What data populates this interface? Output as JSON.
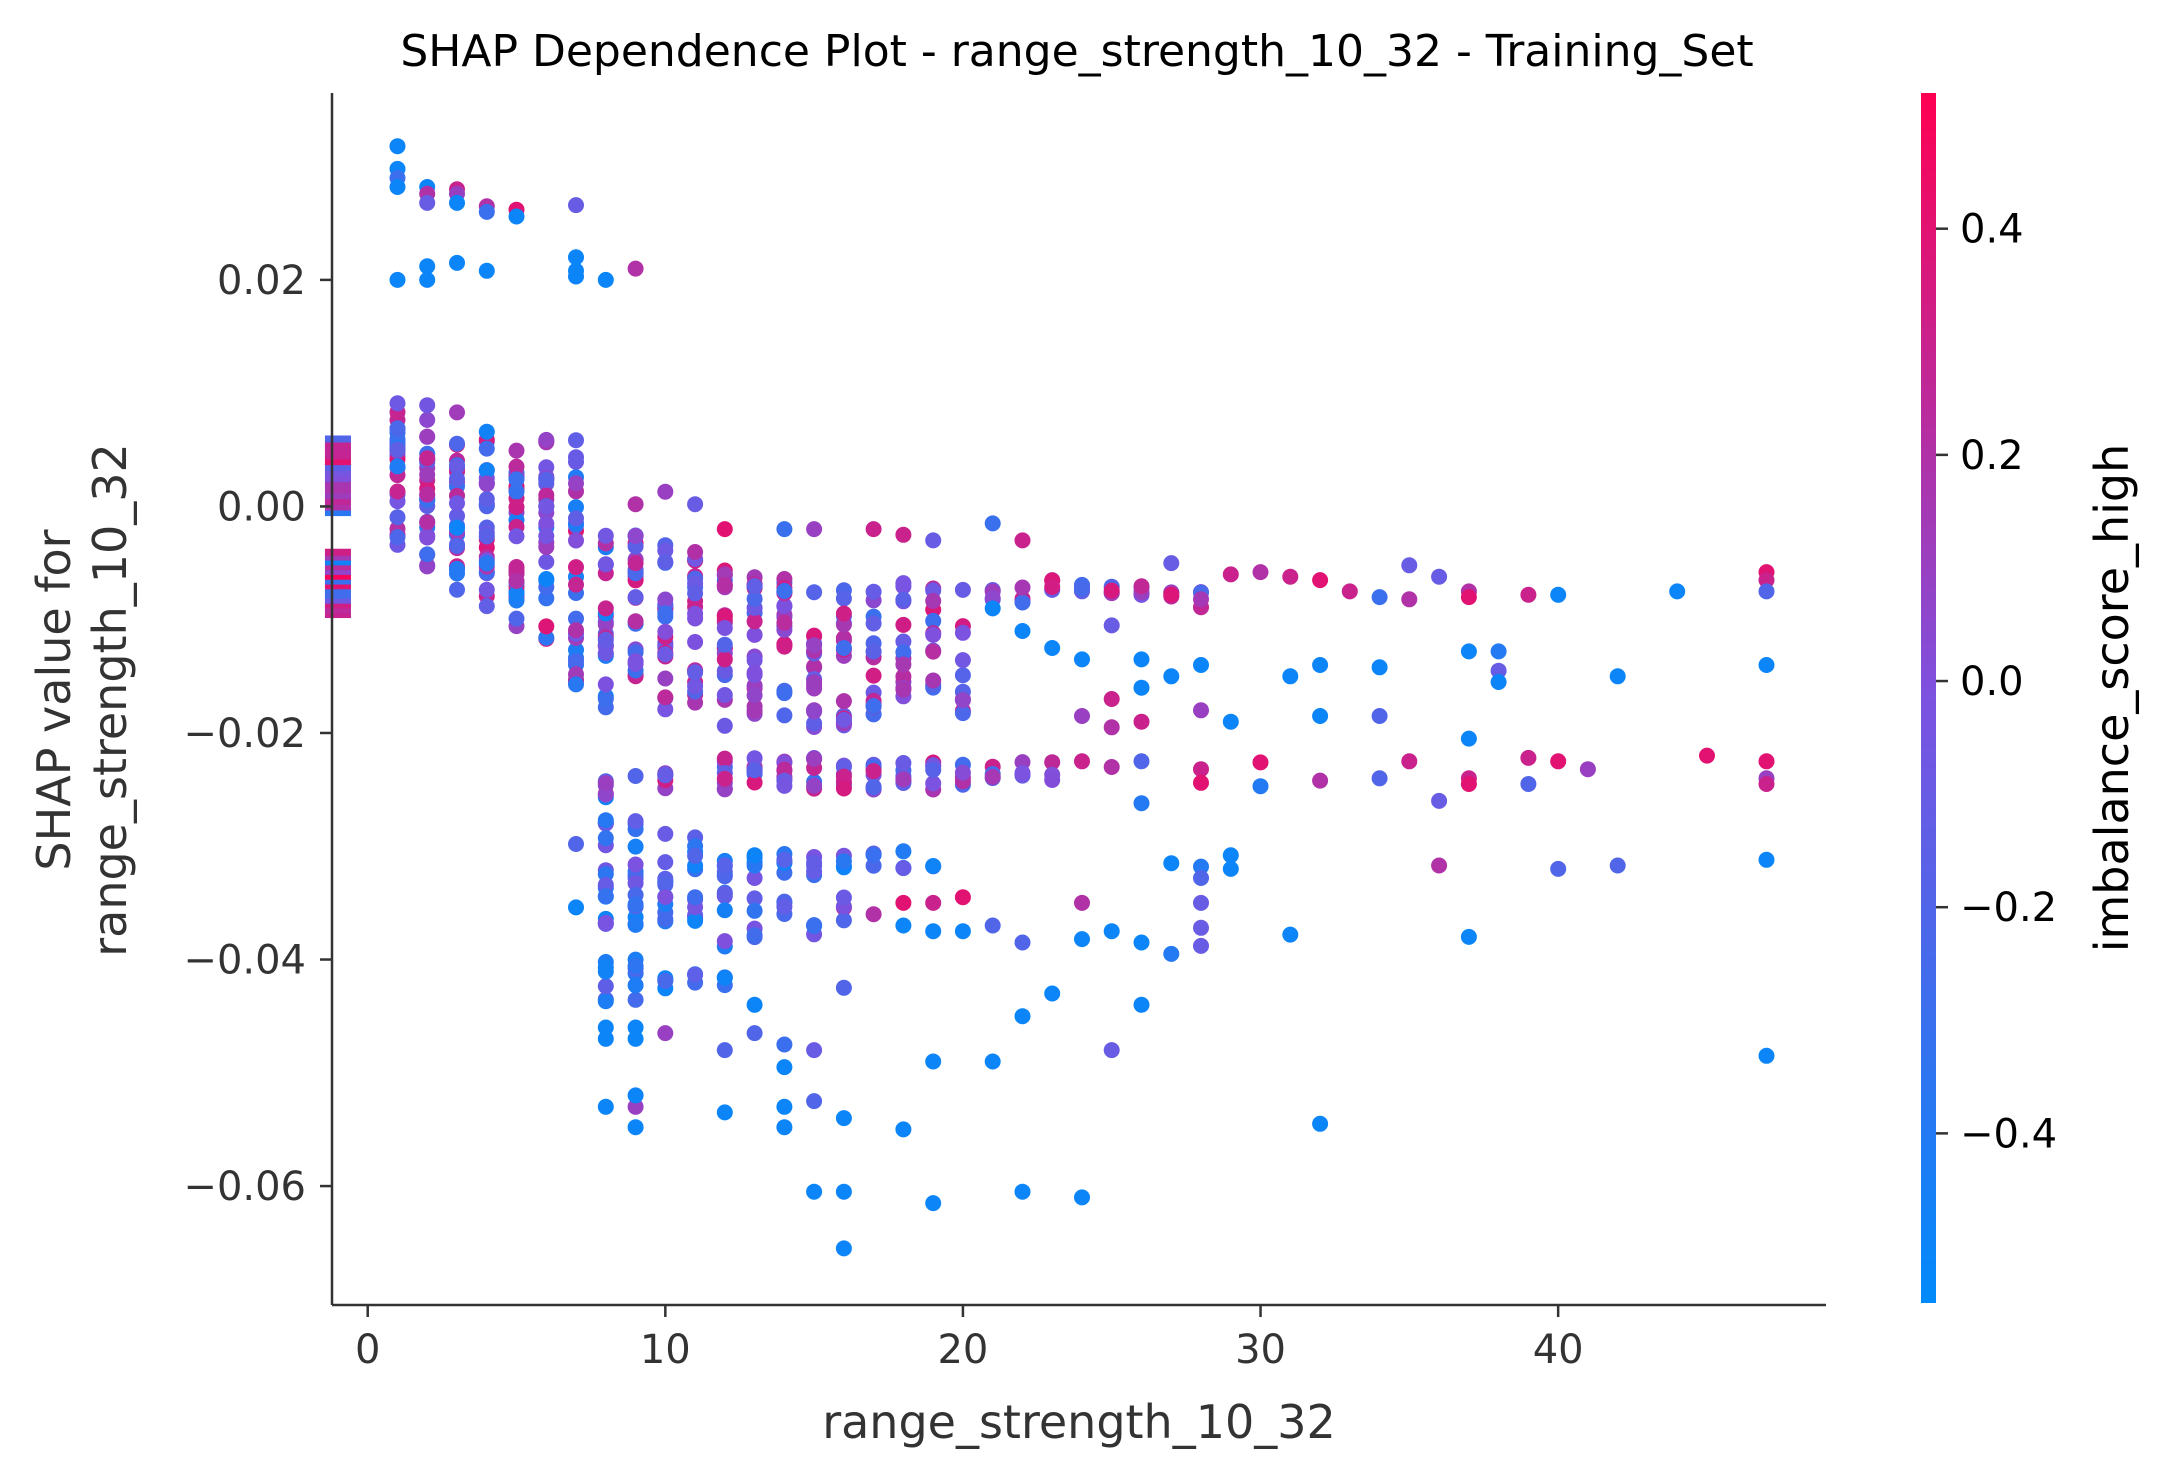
{
  "chart_data": {
    "type": "scatter",
    "title": "SHAP Dependence Plot - range_strength_10_32 - Training_Set",
    "xlabel": "range_strength_10_32",
    "ylabel_lines": [
      "SHAP value for",
      "range_strength_10_32"
    ],
    "xlim": [
      -1.2,
      49
    ],
    "ylim": [
      -0.0705,
      0.0365
    ],
    "xticks": [
      0,
      10,
      20,
      30,
      40
    ],
    "xtick_labels": [
      "0",
      "10",
      "20",
      "30",
      "40"
    ],
    "yticks": [
      0.02,
      0.0,
      -0.02,
      -0.04,
      -0.06
    ],
    "ytick_labels": [
      "0.02",
      "0.00",
      "−0.02",
      "−0.04",
      "−0.06"
    ],
    "grid": false,
    "colorbar": {
      "label": "imbalance_score_high",
      "range": [
        -0.55,
        0.52
      ],
      "ticks": [
        0.4,
        0.2,
        0.0,
        -0.2,
        -0.4
      ],
      "tick_labels": [
        "0.4",
        "0.2",
        "0.0",
        "−0.2",
        "−0.4"
      ],
      "color_low": "#008afb",
      "color_mid": "#7c52e0",
      "color_high": "#ff0052"
    },
    "missing_band": [
      {
        "x": -1,
        "y_from": -0.0005,
        "y_to": 0.006
      },
      {
        "x": -1,
        "y_from": -0.0095,
        "y_to": -0.004
      }
    ],
    "points": [
      [
        1,
        0.0318,
        -0.5
      ],
      [
        1,
        0.0298,
        -0.5
      ],
      [
        1,
        0.029,
        -0.3
      ],
      [
        1,
        0.0282,
        -0.5
      ],
      [
        1,
        0.02,
        -0.5
      ],
      [
        2,
        0.0282,
        -0.5
      ],
      [
        2,
        0.0276,
        0.2
      ],
      [
        2,
        0.0268,
        -0.1
      ],
      [
        2,
        0.0212,
        -0.5
      ],
      [
        2,
        0.02,
        -0.5
      ],
      [
        3,
        0.028,
        0.3
      ],
      [
        3,
        0.0276,
        0.1
      ],
      [
        3,
        0.0268,
        -0.5
      ],
      [
        3,
        0.0215,
        -0.5
      ],
      [
        4,
        0.0265,
        0.2
      ],
      [
        4,
        0.026,
        -0.3
      ],
      [
        4,
        0.0208,
        -0.5
      ],
      [
        5,
        0.0262,
        0.4
      ],
      [
        5,
        0.0256,
        -0.5
      ],
      [
        7,
        0.0266,
        -0.1
      ],
      [
        7,
        0.022,
        -0.5
      ],
      [
        7,
        0.0208,
        -0.5
      ],
      [
        7,
        0.0203,
        -0.5
      ],
      [
        8,
        0.02,
        -0.5
      ],
      [
        9,
        0.021,
        0.2
      ],
      [
        9,
        0.0002,
        0.2
      ],
      [
        10,
        0.0013,
        0.1
      ],
      [
        11,
        0.0002,
        -0.1
      ],
      [
        12,
        -0.002,
        0.4
      ],
      [
        14,
        -0.002,
        -0.3
      ],
      [
        15,
        -0.002,
        0.1
      ],
      [
        17,
        -0.002,
        0.3
      ],
      [
        18,
        -0.0025,
        0.3
      ],
      [
        19,
        -0.003,
        -0.1
      ],
      [
        21,
        -0.0015,
        -0.3
      ],
      [
        22,
        -0.003,
        0.3
      ],
      [
        21,
        -0.009,
        -0.5
      ],
      [
        22,
        -0.011,
        -0.5
      ],
      [
        23,
        -0.0125,
        -0.5
      ],
      [
        24,
        -0.0135,
        -0.5
      ],
      [
        25,
        -0.0105,
        -0.1
      ],
      [
        27,
        -0.005,
        -0.1
      ],
      [
        29,
        -0.006,
        0.3
      ],
      [
        30,
        -0.0058,
        0.2
      ],
      [
        31,
        -0.0062,
        0.3
      ],
      [
        32,
        -0.0065,
        0.4
      ],
      [
        33,
        -0.0075,
        0.3
      ],
      [
        34,
        -0.008,
        -0.3
      ],
      [
        35,
        -0.0052,
        -0.1
      ],
      [
        35,
        -0.0082,
        0.2
      ],
      [
        36,
        -0.0062,
        -0.1
      ],
      [
        37,
        -0.0075,
        0.2
      ],
      [
        37,
        -0.008,
        0.4
      ],
      [
        39,
        -0.0078,
        0.3
      ],
      [
        40,
        -0.0078,
        -0.5
      ],
      [
        44,
        -0.0075,
        -0.5
      ],
      [
        47,
        -0.0058,
        0.4
      ],
      [
        47,
        -0.0065,
        0.3
      ],
      [
        47,
        -0.0075,
        -0.2
      ],
      [
        26,
        -0.0135,
        -0.5
      ],
      [
        26,
        -0.016,
        -0.5
      ],
      [
        27,
        -0.015,
        -0.5
      ],
      [
        28,
        -0.014,
        -0.5
      ],
      [
        29,
        -0.019,
        -0.5
      ],
      [
        31,
        -0.015,
        -0.5
      ],
      [
        32,
        -0.014,
        -0.5
      ],
      [
        32,
        -0.0185,
        -0.5
      ],
      [
        34,
        -0.0142,
        -0.5
      ],
      [
        34,
        -0.0185,
        -0.2
      ],
      [
        37,
        -0.0128,
        -0.5
      ],
      [
        37,
        -0.0205,
        -0.5
      ],
      [
        38,
        -0.0128,
        -0.4
      ],
      [
        38,
        -0.0145,
        -0.1
      ],
      [
        38,
        -0.0155,
        -0.5
      ],
      [
        42,
        -0.015,
        -0.5
      ],
      [
        47,
        -0.014,
        -0.5
      ],
      [
        24,
        -0.0185,
        0.1
      ],
      [
        25,
        -0.017,
        0.3
      ],
      [
        25,
        -0.0195,
        0.2
      ],
      [
        26,
        -0.019,
        0.3
      ],
      [
        28,
        -0.018,
        0.1
      ],
      [
        24,
        -0.0225,
        0.3
      ],
      [
        25,
        -0.023,
        0.2
      ],
      [
        26,
        -0.0225,
        -0.2
      ],
      [
        26,
        -0.0262,
        -0.4
      ],
      [
        28,
        -0.0232,
        0.3
      ],
      [
        28,
        -0.0244,
        0.4
      ],
      [
        30,
        -0.0226,
        0.4
      ],
      [
        30,
        -0.0247,
        -0.4
      ],
      [
        32,
        -0.0242,
        0.2
      ],
      [
        34,
        -0.024,
        -0.2
      ],
      [
        35,
        -0.0225,
        0.3
      ],
      [
        36,
        -0.026,
        -0.1
      ],
      [
        37,
        -0.024,
        0.3
      ],
      [
        37,
        -0.0245,
        0.4
      ],
      [
        39,
        -0.0222,
        0.3
      ],
      [
        39,
        -0.0245,
        -0.2
      ],
      [
        40,
        -0.0225,
        0.4
      ],
      [
        41,
        -0.0232,
        0.1
      ],
      [
        45,
        -0.022,
        0.4
      ],
      [
        47,
        -0.0225,
        0.4
      ],
      [
        47,
        -0.024,
        0.1
      ],
      [
        47,
        -0.0245,
        0.3
      ],
      [
        27,
        -0.0315,
        -0.5
      ],
      [
        27,
        -0.0395,
        -0.4
      ],
      [
        28,
        -0.0318,
        -0.4
      ],
      [
        28,
        -0.0328,
        -0.2
      ],
      [
        28,
        -0.035,
        -0.1
      ],
      [
        28,
        -0.0372,
        -0.1
      ],
      [
        28,
        -0.0388,
        -0.1
      ],
      [
        29,
        -0.0308,
        -0.5
      ],
      [
        29,
        -0.032,
        -0.5
      ],
      [
        31,
        -0.0378,
        -0.5
      ],
      [
        36,
        -0.0317,
        0.2
      ],
      [
        37,
        -0.038,
        -0.5
      ],
      [
        40,
        -0.032,
        -0.2
      ],
      [
        42,
        -0.0317,
        -0.2
      ],
      [
        47,
        -0.0312,
        -0.5
      ],
      [
        22,
        -0.0385,
        -0.2
      ],
      [
        22,
        -0.045,
        -0.5
      ],
      [
        23,
        -0.043,
        -0.5
      ],
      [
        24,
        -0.0382,
        -0.5
      ],
      [
        24,
        -0.035,
        0.2
      ],
      [
        25,
        -0.0375,
        -0.5
      ],
      [
        25,
        -0.048,
        -0.1
      ],
      [
        26,
        -0.0385,
        -0.5
      ],
      [
        26,
        -0.044,
        -0.5
      ],
      [
        19,
        -0.049,
        -0.5
      ],
      [
        21,
        -0.049,
        -0.5
      ],
      [
        32,
        -0.0545,
        -0.5
      ],
      [
        47,
        -0.0485,
        -0.5
      ],
      [
        15,
        -0.0605,
        -0.5
      ],
      [
        16,
        -0.0605,
        -0.5
      ],
      [
        16,
        -0.0655,
        -0.5
      ],
      [
        19,
        -0.0615,
        -0.5
      ],
      [
        22,
        -0.0605,
        -0.5
      ],
      [
        24,
        -0.061,
        -0.5
      ],
      [
        8,
        -0.053,
        -0.5
      ],
      [
        9,
        -0.053,
        0.1
      ],
      [
        9,
        -0.052,
        -0.5
      ],
      [
        9,
        -0.0548,
        -0.5
      ],
      [
        12,
        -0.0535,
        -0.5
      ],
      [
        14,
        -0.053,
        -0.5
      ],
      [
        14,
        -0.0548,
        -0.5
      ],
      [
        15,
        -0.0525,
        -0.2
      ],
      [
        16,
        -0.054,
        -0.5
      ],
      [
        18,
        -0.055,
        -0.5
      ],
      [
        8,
        -0.046,
        -0.5
      ],
      [
        8,
        -0.047,
        -0.5
      ],
      [
        9,
        -0.046,
        -0.5
      ],
      [
        9,
        -0.047,
        -0.5
      ],
      [
        10,
        -0.0465,
        0.1
      ],
      [
        12,
        -0.048,
        -0.2
      ],
      [
        13,
        -0.0465,
        -0.2
      ],
      [
        14,
        -0.0475,
        -0.3
      ],
      [
        14,
        -0.0495,
        -0.5
      ],
      [
        15,
        -0.048,
        -0.1
      ],
      [
        7,
        -0.0298,
        -0.2
      ],
      [
        7,
        -0.0354,
        -0.5
      ],
      [
        9,
        -0.0238,
        -0.2
      ],
      [
        13,
        -0.044,
        -0.5
      ],
      [
        16,
        -0.0425,
        -0.2
      ],
      [
        17,
        -0.036,
        0.2
      ],
      [
        18,
        -0.035,
        0.4
      ],
      [
        18,
        -0.037,
        -0.5
      ],
      [
        19,
        -0.035,
        0.3
      ],
      [
        19,
        -0.0375,
        -0.5
      ],
      [
        20,
        -0.0345,
        0.4
      ],
      [
        20,
        -0.0375,
        -0.5
      ],
      [
        21,
        -0.037,
        -0.2
      ]
    ]
  }
}
